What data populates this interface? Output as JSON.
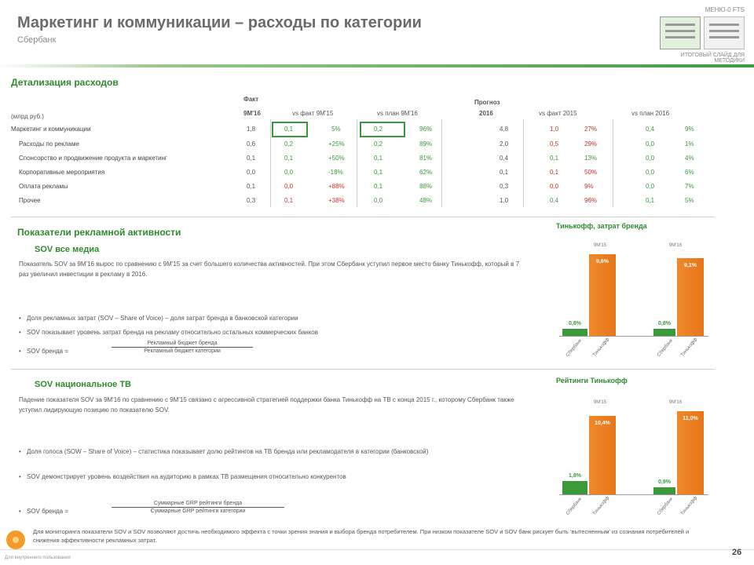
{
  "header": {
    "title": "Маркетинг и коммуникации – расходы по категории",
    "subtitle": "Сбербанк",
    "logo_top": "МЕНЮ-0 FTS",
    "logo_bottom": "ИТОГОВЫЙ СЛАЙД ДЛЯ МЕТОДИКИ"
  },
  "detail": {
    "heading": "Детализация расходов",
    "units": "(млрд руб.)",
    "group_fact": "Факт",
    "group_forecast": "Прогноз",
    "col_fact_year": "9М'16",
    "col_vs_fact": "vs факт 9М'15",
    "col_vs_plan": "vs план 9М'16",
    "col_fc_year": "2016",
    "col_vs_fact_fc": "vs факт 2015",
    "col_vs_plan_fc": "vs план 2016",
    "rows": [
      {
        "label": "Маркетинг и коммуникации",
        "v1": "1,8",
        "d1": "0,1",
        "p1": "5%",
        "d2": "0,2",
        "p2": "96%",
        "v2": "4,8",
        "d3": "1,0",
        "p3": "27%",
        "d4": "0,4",
        "p4": "9%"
      },
      {
        "label": "Расходы по рекламе",
        "v1": "0,6",
        "d1": "0,2",
        "p1": "+25%",
        "d2": "0,2",
        "p2": "89%",
        "v2": "2,0",
        "d3": "0,5",
        "p3": "29%",
        "d4": "0,0",
        "p4": "1%"
      },
      {
        "label": "Спонсорство и продвижение продукта и маркетинг",
        "v1": "0,1",
        "d1": "0,1",
        "p1": "+50%",
        "d2": "0,1",
        "p2": "81%",
        "v2": "0,4",
        "d3": "0,1",
        "p3": "13%",
        "d4": "0,0",
        "p4": "4%"
      },
      {
        "label": "Корпоративные мероприятия",
        "v1": "0,0",
        "d1": "0,0",
        "p1": "-18%",
        "d2": "0,1",
        "p2": "62%",
        "v2": "0,1",
        "d3": "0,1",
        "p3": "50%",
        "d4": "0,0",
        "p4": "6%"
      },
      {
        "label": "Оплата рекламы",
        "v1": "0,1",
        "d1": "0,0",
        "p1": "+88%",
        "d2": "0,1",
        "p2": "88%",
        "v2": "0,3",
        "d3": "0,0",
        "p3": "9%",
        "d4": "0,0",
        "p4": "7%"
      },
      {
        "label": "Прочее",
        "v1": "0,3",
        "d1": "0,1",
        "p1": "+38%",
        "d2": "0,0",
        "p2": "48%",
        "v2": "1,0",
        "d3": "0,4",
        "p3": "96%",
        "d4": "0,1",
        "p4": "5%"
      }
    ]
  },
  "activity": {
    "heading": "Показатели рекламной активности",
    "sov": {
      "heading": "SOV все медиа",
      "text": "Показатель SOV за 9М'16 вырос по сравнению с 9М'15 за счет большего количества активностей. При этом Сбербанк уступил первое место банку Тинькофф, который в 7 раз увеличил инвестиции в рекламу в 2016.",
      "bullet1": "Доля рекламных затрат (SOV – Share of Voice) – доля затрат бренда в банковской категории",
      "bullet2": "SOV показывает уровень затрат бренда на рекламу относительно остальных коммерческих банков",
      "formula_label": "SOV бренда =",
      "formula_num": "Рекламный бюджет бренда",
      "formula_den": "Рекламный бюджет категории"
    },
    "sow": {
      "heading": "SOV национальное ТВ",
      "text": "Падение показателя SOV за 9М'16 по сравнению с 9М'15 связано с агрессивной стратегией поддержки банка Тинькофф на ТВ с конца 2015 г., которому Сбербанк также уступил лидирующую позицию по показателю SOV.",
      "bullet1": "Доля голоса (SOW – Share of Voice) – статистика показывает долю рейтингов на ТВ бренда или рекламодателя в категории (банковской)",
      "bullet2": "SOV демонстрирует уровень воздействия на аудиторию в рамках ТВ размещения относительно конкурентов",
      "formula_label": "SOV бренда =",
      "formula_num": "Суммарные GRP рейтинги бренда",
      "formula_den": "Суммарные GRP рейтинги категории"
    }
  },
  "charts": {
    "chart1_title": "Тинькофф, затрат бренда",
    "chart2_title": "Рейтинги Тинькофф",
    "chart_data": [
      {
        "type": "bar",
        "categories": [
          "Сбербанк",
          "Тинькофф",
          "Сбербанк",
          "Тинькофф"
        ],
        "groups": [
          "9М'15",
          "9М'16"
        ],
        "values": [
          0.8,
          9.6,
          0.8,
          9.1
        ],
        "labels": [
          "0,8%",
          "9,6%",
          "0,8%",
          "9,1%"
        ]
      },
      {
        "type": "bar",
        "categories": [
          "Сбербанк",
          "Тинькофф",
          "Сбербанк",
          "Тинькофф"
        ],
        "groups": [
          "9М'15",
          "9М'16"
        ],
        "values": [
          1.8,
          10.4,
          0.9,
          11.0
        ],
        "labels": [
          "1,8%",
          "10,4%",
          "0,9%",
          "11,0%"
        ]
      }
    ]
  },
  "footer": {
    "note": "Для мониторинга показатели SOV и SOV позволяют достичь необходимого эффекта с точки зрения знания и выбора бренда потребителем. При низком показателе SOV и SOV банк рискует быть ‘вытесненным’ из сознания потребителей и снижения эффективности рекламных затрат.",
    "copyright": "Для внутреннего пользования",
    "page": "26"
  }
}
